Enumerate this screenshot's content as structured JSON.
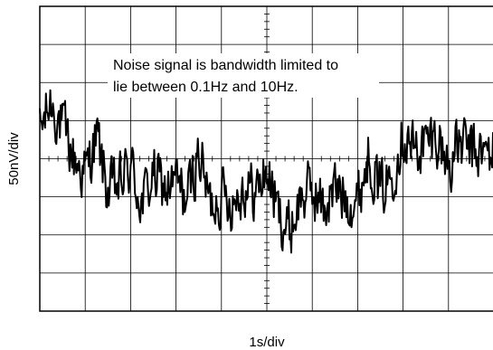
{
  "chart_data": {
    "type": "line",
    "title": "",
    "xlabel": "1s/div",
    "ylabel": "50nV/div",
    "x_divisions": 10,
    "y_divisions": 8,
    "xlim": [
      0,
      10
    ],
    "ylim": [
      -200,
      200
    ],
    "grid": true,
    "minor_ticks_on_center_axes": true,
    "annotation": {
      "lines": [
        "Noise signal is bandwidth limited to",
        "lie between 0.1Hz and 10Hz."
      ]
    },
    "series": [
      {
        "x": [
          0.0,
          0.25,
          0.5,
          0.75,
          1.0,
          1.25,
          1.5,
          1.75,
          2.0,
          2.25,
          2.5,
          2.75,
          3.0,
          3.25,
          3.5,
          3.75,
          4.0,
          4.25,
          4.5,
          4.75,
          5.0,
          5.25,
          5.5,
          5.75,
          6.0,
          6.25,
          6.5,
          6.75,
          7.0,
          7.25,
          7.5,
          7.75,
          8.0,
          8.25,
          8.5,
          8.75,
          9.0,
          9.25,
          9.5,
          9.75,
          10.0
        ],
        "values": [
          35,
          75,
          40,
          0,
          -20,
          30,
          -45,
          -35,
          -10,
          -60,
          -20,
          -40,
          -30,
          -55,
          10,
          -60,
          -45,
          -55,
          -35,
          -45,
          -15,
          -70,
          -95,
          -50,
          -40,
          -65,
          -40,
          -50,
          -55,
          10,
          -45,
          -20,
          35,
          10,
          20,
          30,
          -10,
          20,
          10,
          5,
          10
        ]
      }
    ]
  }
}
